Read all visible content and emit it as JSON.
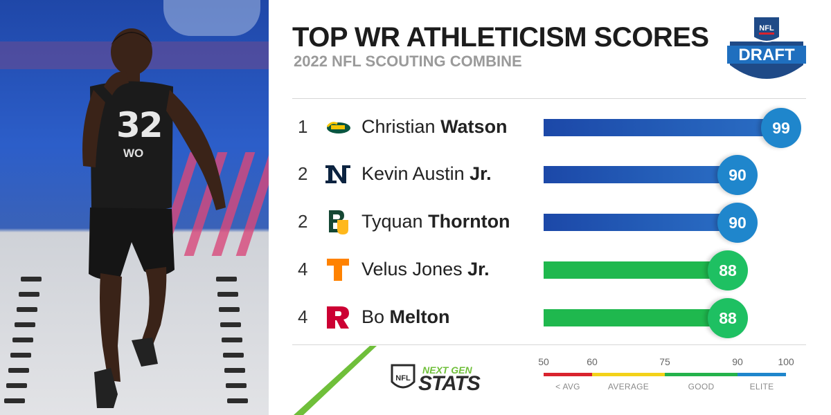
{
  "header": {
    "title": "TOP WR ATHLETICISM SCORES",
    "subtitle": "2022 NFL SCOUTING COMBINE",
    "draft_logo_text": "DRAFT",
    "nfl_text": "NFL"
  },
  "photo": {
    "jersey_number": "32",
    "jersey_label": "WO"
  },
  "colors": {
    "blue_bar": "#1c48a8",
    "blue_badge": "#1f86cc",
    "green_bar": "#1fb84e",
    "green_badge": "#1ec062",
    "below_avg": "#d9232e",
    "average": "#f3d21a",
    "good": "#24b24b",
    "elite": "#1f86cc"
  },
  "chart_data": {
    "type": "bar",
    "title": "TOP WR ATHLETICISM SCORES",
    "subtitle": "2022 NFL SCOUTING COMBINE",
    "xlim": [
      50,
      100
    ],
    "ticks": [
      50,
      60,
      75,
      90,
      100
    ],
    "rows": [
      {
        "rank": "1",
        "first": "Christian",
        "last": "Watson",
        "school_icon": "ndsu-bison-logo",
        "score": 99,
        "tier": "elite"
      },
      {
        "rank": "2",
        "first": "Kevin Austin",
        "last": "Jr.",
        "school_icon": "notre-dame-nd-logo",
        "score": 90,
        "tier": "elite"
      },
      {
        "rank": "2",
        "first": "Tyquan",
        "last": "Thornton",
        "school_icon": "baylor-bu-logo",
        "score": 90,
        "tier": "elite"
      },
      {
        "rank": "4",
        "first": "Velus Jones",
        "last": "Jr.",
        "school_icon": "tennessee-t-logo",
        "score": 88,
        "tier": "good"
      },
      {
        "rank": "4",
        "first": "Bo",
        "last": "Melton",
        "school_icon": "rutgers-r-logo",
        "score": 88,
        "tier": "good"
      }
    ],
    "scale": {
      "ticks": [
        "50",
        "60",
        "75",
        "90",
        "100"
      ],
      "categories": [
        "< AVG",
        "AVERAGE",
        "GOOD",
        "ELITE"
      ]
    }
  },
  "footer": {
    "next_gen": "NEXT GEN",
    "stats": "STATS",
    "nfl_shield_text": "NFL"
  }
}
